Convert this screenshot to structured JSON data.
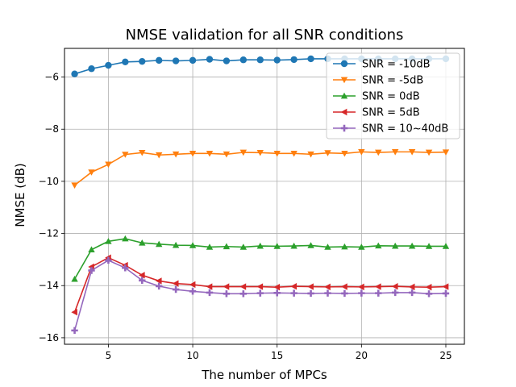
{
  "chart_data": {
    "type": "line",
    "title": "NMSE validation for all SNR conditions",
    "xlabel": "The number of MPCs",
    "ylabel": "NMSE (dB)",
    "xlim": [
      2.4,
      26.1
    ],
    "ylim": [
      -16.25,
      -4.9
    ],
    "xticks": [
      5,
      10,
      15,
      20,
      25
    ],
    "yticks": [
      -16,
      -14,
      -12,
      -10,
      -8,
      -6
    ],
    "grid": true,
    "legend_position": "top-right",
    "x": [
      3,
      4,
      5,
      6,
      7,
      8,
      9,
      10,
      11,
      12,
      13,
      14,
      15,
      16,
      17,
      18,
      19,
      20,
      21,
      22,
      23,
      24,
      25
    ],
    "series": [
      {
        "name": "SNR = -10dB",
        "color": "#1f77b4",
        "marker": "circle",
        "values": [
          -5.88,
          -5.68,
          -5.55,
          -5.42,
          -5.4,
          -5.36,
          -5.38,
          -5.36,
          -5.32,
          -5.38,
          -5.34,
          -5.34,
          -5.35,
          -5.33,
          -5.3,
          -5.3,
          -5.3,
          -5.3,
          -5.3,
          -5.3,
          -5.3,
          -5.3,
          -5.3
        ]
      },
      {
        "name": "SNR = -5dB",
        "color": "#ff7f0e",
        "marker": "triangle-down",
        "values": [
          -10.15,
          -9.65,
          -9.35,
          -8.97,
          -8.9,
          -8.99,
          -8.96,
          -8.93,
          -8.93,
          -8.96,
          -8.89,
          -8.9,
          -8.93,
          -8.93,
          -8.96,
          -8.91,
          -8.93,
          -8.87,
          -8.89,
          -8.87,
          -8.87,
          -8.89,
          -8.88
        ]
      },
      {
        "name": "SNR = 0dB",
        "color": "#2ca02c",
        "marker": "triangle-up",
        "values": [
          -13.75,
          -12.62,
          -12.3,
          -12.2,
          -12.36,
          -12.41,
          -12.45,
          -12.46,
          -12.52,
          -12.5,
          -12.52,
          -12.48,
          -12.49,
          -12.48,
          -12.46,
          -12.52,
          -12.51,
          -12.52,
          -12.47,
          -12.48,
          -12.48,
          -12.49,
          -12.49
        ]
      },
      {
        "name": "SNR = 5dB",
        "color": "#d62728",
        "marker": "triangle-left",
        "values": [
          -15.02,
          -13.28,
          -12.93,
          -13.22,
          -13.6,
          -13.82,
          -13.92,
          -13.96,
          -14.04,
          -14.04,
          -14.04,
          -14.04,
          -14.06,
          -14.03,
          -14.04,
          -14.05,
          -14.04,
          -14.05,
          -14.04,
          -14.03,
          -14.05,
          -14.06,
          -14.04
        ]
      },
      {
        "name": "SNR = 10~40dB",
        "color": "#9467bd",
        "marker": "plus",
        "values": [
          -15.72,
          -13.42,
          -13.03,
          -13.32,
          -13.8,
          -14.02,
          -14.15,
          -14.22,
          -14.27,
          -14.31,
          -14.31,
          -14.29,
          -14.28,
          -14.29,
          -14.3,
          -14.29,
          -14.3,
          -14.29,
          -14.29,
          -14.27,
          -14.27,
          -14.31,
          -14.3
        ]
      }
    ]
  }
}
